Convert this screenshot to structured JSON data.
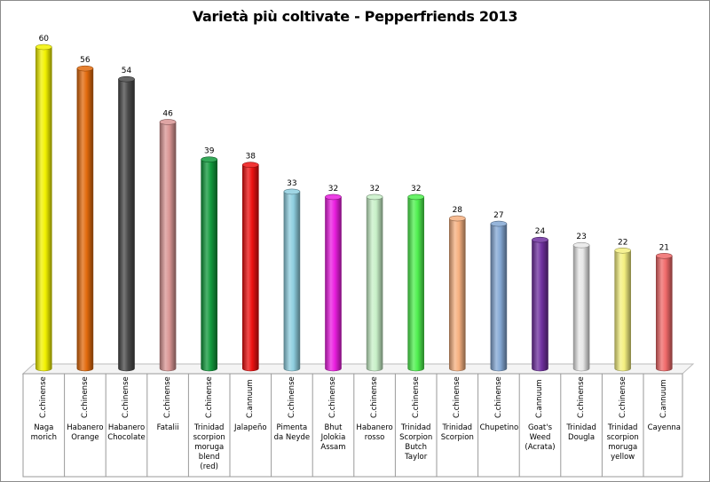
{
  "chart_data": {
    "type": "bar",
    "title": "Varietà più coltivate - Pepperfriends 2013",
    "xlabel": "",
    "ylabel": "",
    "ylim": [
      0,
      60
    ],
    "grid": false,
    "legend": "none",
    "categories": [
      {
        "species": "C.chinense",
        "name": "Naga morich",
        "value": 60,
        "color": "#f2f200"
      },
      {
        "species": "C.chinense",
        "name": "Habanero Orange",
        "value": 56,
        "color": "#e26a0c"
      },
      {
        "species": "C.chinense",
        "name": "Habanero Chocolate",
        "value": 54,
        "color": "#4a4a4a"
      },
      {
        "species": "C.chinense",
        "name": "Fatalii",
        "value": 46,
        "color": "#d99594"
      },
      {
        "species": "C.chinense",
        "name": "Trinidad scorpion moruga blend (red)",
        "value": 39,
        "color": "#119a3c"
      },
      {
        "species": "C.annuum",
        "name": "Jalapeño",
        "value": 38,
        "color": "#ee1111"
      },
      {
        "species": "C.chinense",
        "name": "Pimenta da Neyde",
        "value": 33,
        "color": "#8fcfe0"
      },
      {
        "species": "C.chinense",
        "name": "Bhut Jolokia Assam",
        "value": 32,
        "color": "#ea1ee0"
      },
      {
        "species": "C.chinense",
        "name": "Habanero rosso",
        "value": 32,
        "color": "#c8f0c8"
      },
      {
        "species": "C.chinense",
        "name": "Trinidad Scorpion Butch Taylor",
        "value": 32,
        "color": "#4ff04f"
      },
      {
        "species": "C.chinense",
        "name": "Trinidad Scorpion",
        "value": 28,
        "color": "#f6b080"
      },
      {
        "species": "C.chinense",
        "name": "Chupetino",
        "value": 27,
        "color": "#84a8d4"
      },
      {
        "species": "C.annuum",
        "name": "Goat's Weed (Acrata)",
        "value": 24,
        "color": "#7030a0"
      },
      {
        "species": "C.chinense",
        "name": "Trinidad Dougla",
        "value": 23,
        "color": "#e8e8e8"
      },
      {
        "species": "C.chinense",
        "name": "Trinidad scorpion moruga yellow",
        "value": 22,
        "color": "#f4f080"
      },
      {
        "species": "C.annuum",
        "name": "Cayenna",
        "value": 21,
        "color": "#f06a6a"
      }
    ]
  }
}
